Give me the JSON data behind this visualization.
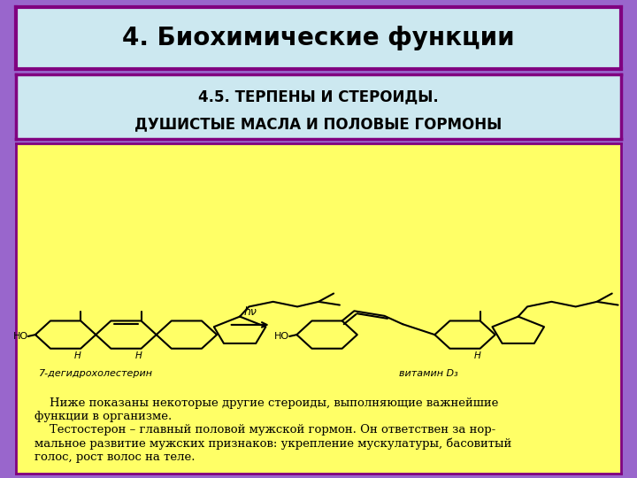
{
  "title": "4. Биохимические функции",
  "subtitle_line1": "4.5. ТЕРПЕНЫ И СТЕРОИДЫ.",
  "subtitle_line2": "ДУШИСТЫЕ МАСЛА И ПОЛОВЫЕ ГОРМОНЫ",
  "bg_outer": "#9966cc",
  "bg_title_box": "#cce8f0",
  "bg_subtitle_box": "#cce8f0",
  "bg_content": "#ffff66",
  "title_color": "#000000",
  "subtitle_color": "#000000",
  "border_color": "#800080",
  "label_left": "7-дегидрохолестерин",
  "label_right": "витамин D₃",
  "arrow_label": "hν",
  "text_block": "    Ниже показаны некоторые другие стероиды, выполняющие важнейшие\nфункции в организме.\n    Тестостерон – главный половой мужской гормон. Он ответствен за нор-\nмальное развитие мужских признаков: укрепление мускулатуры, басовитый\nголос, рост волос на теле.",
  "title_fontsize": 20,
  "subtitle_fontsize": 13,
  "label_fontsize": 9,
  "text_fontsize": 10
}
